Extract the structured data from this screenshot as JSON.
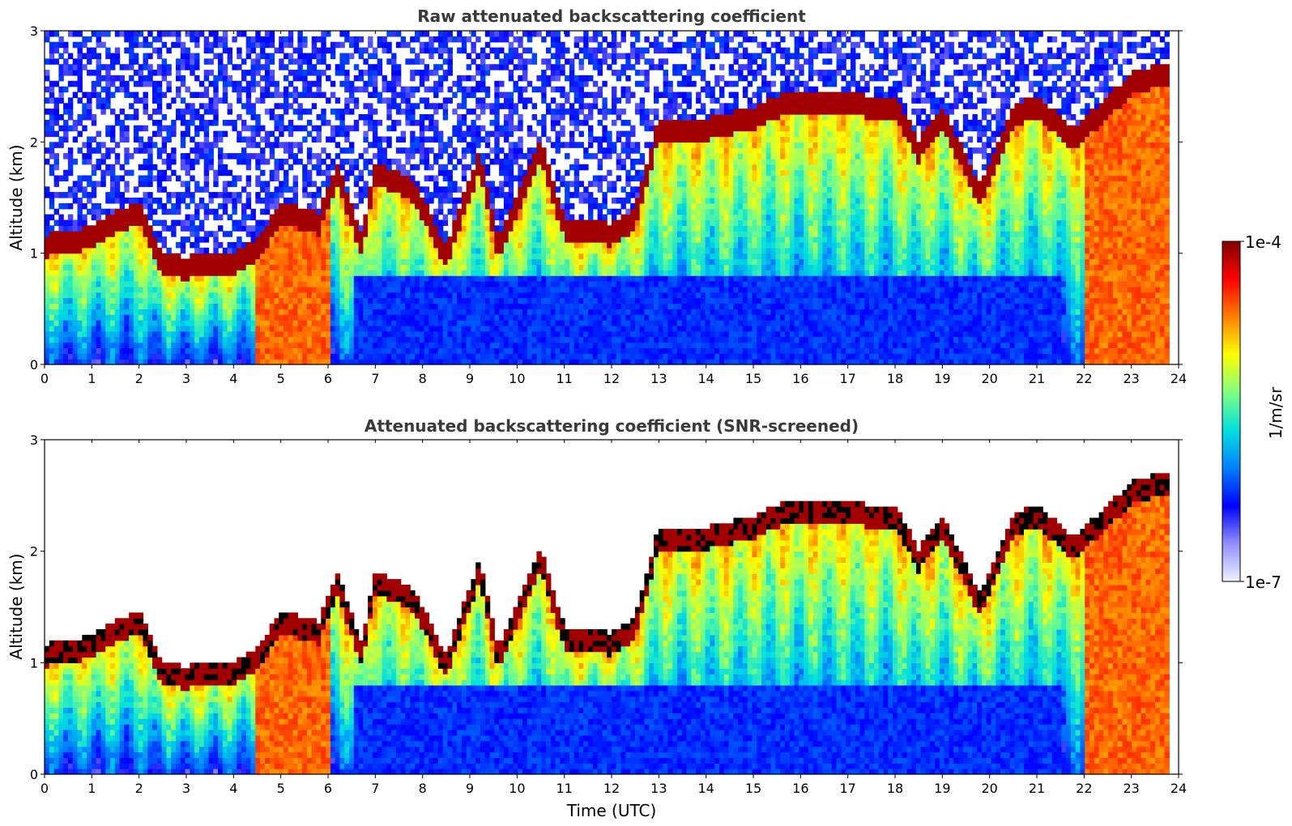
{
  "chart_data": [
    {
      "type": "heatmap",
      "title": "Raw attenuated backscattering coefficient",
      "xlabel": "",
      "ylabel": "Altitude (km)",
      "xlim": [
        0,
        24
      ],
      "ylim": [
        0,
        3
      ],
      "x_ticks": [
        "0",
        "1",
        "2",
        "3",
        "4",
        "5",
        "6",
        "7",
        "8",
        "9",
        "10",
        "11",
        "12",
        "13",
        "14",
        "15",
        "16",
        "17",
        "18",
        "19",
        "20",
        "21",
        "22",
        "23",
        "24"
      ],
      "y_ticks": [
        "0",
        "1",
        "2",
        "3"
      ],
      "screened": false,
      "cloud_base_km": [
        {
          "x": 0.0,
          "y": 1.05
        },
        {
          "x": 1.0,
          "y": 1.12
        },
        {
          "x": 1.5,
          "y": 1.25
        },
        {
          "x": 2.0,
          "y": 1.35
        },
        {
          "x": 2.5,
          "y": 0.88
        },
        {
          "x": 3.0,
          "y": 0.85
        },
        {
          "x": 4.0,
          "y": 0.9
        },
        {
          "x": 4.5,
          "y": 1.0
        },
        {
          "x": 5.0,
          "y": 1.35
        },
        {
          "x": 5.8,
          "y": 1.25
        },
        {
          "x": 6.2,
          "y": 1.7
        },
        {
          "x": 6.7,
          "y": 1.05
        },
        {
          "x": 7.0,
          "y": 1.7
        },
        {
          "x": 7.8,
          "y": 1.55
        },
        {
          "x": 8.5,
          "y": 0.95
        },
        {
          "x": 9.2,
          "y": 1.8
        },
        {
          "x": 9.6,
          "y": 1.0
        },
        {
          "x": 10.5,
          "y": 1.9
        },
        {
          "x": 11.0,
          "y": 1.2
        },
        {
          "x": 12.0,
          "y": 1.15
        },
        {
          "x": 12.5,
          "y": 1.3
        },
        {
          "x": 13.0,
          "y": 2.1
        },
        {
          "x": 14.0,
          "y": 2.1
        },
        {
          "x": 15.0,
          "y": 2.2
        },
        {
          "x": 15.5,
          "y": 2.3
        },
        {
          "x": 16.5,
          "y": 2.35
        },
        {
          "x": 17.5,
          "y": 2.3
        },
        {
          "x": 18.0,
          "y": 2.3
        },
        {
          "x": 18.5,
          "y": 1.9
        },
        {
          "x": 19.0,
          "y": 2.2
        },
        {
          "x": 19.8,
          "y": 1.5
        },
        {
          "x": 20.5,
          "y": 2.2
        },
        {
          "x": 21.0,
          "y": 2.3
        },
        {
          "x": 21.8,
          "y": 2.0
        },
        {
          "x": 22.5,
          "y": 2.3
        },
        {
          "x": 23.0,
          "y": 2.5
        },
        {
          "x": 23.8,
          "y": 2.6
        }
      ]
    },
    {
      "type": "heatmap",
      "title": "Attenuated backscattering coefficient (SNR-screened)",
      "xlabel": "Time (UTC)",
      "ylabel": "Altitude (km)",
      "xlim": [
        0,
        24
      ],
      "ylim": [
        0,
        3
      ],
      "x_ticks": [
        "0",
        "1",
        "2",
        "3",
        "4",
        "5",
        "6",
        "7",
        "8",
        "9",
        "10",
        "11",
        "12",
        "13",
        "14",
        "15",
        "16",
        "17",
        "18",
        "19",
        "20",
        "21",
        "22",
        "23",
        "24"
      ],
      "y_ticks": [
        "0",
        "1",
        "2",
        "3"
      ],
      "screened": true,
      "cloud_base_km": [
        {
          "x": 0.0,
          "y": 1.05
        },
        {
          "x": 1.0,
          "y": 1.12
        },
        {
          "x": 1.5,
          "y": 1.25
        },
        {
          "x": 2.0,
          "y": 1.35
        },
        {
          "x": 2.5,
          "y": 0.88
        },
        {
          "x": 3.0,
          "y": 0.85
        },
        {
          "x": 4.0,
          "y": 0.9
        },
        {
          "x": 4.5,
          "y": 1.0
        },
        {
          "x": 5.0,
          "y": 1.35
        },
        {
          "x": 5.8,
          "y": 1.25
        },
        {
          "x": 6.2,
          "y": 1.7
        },
        {
          "x": 6.7,
          "y": 1.05
        },
        {
          "x": 7.0,
          "y": 1.7
        },
        {
          "x": 7.8,
          "y": 1.55
        },
        {
          "x": 8.5,
          "y": 0.95
        },
        {
          "x": 9.2,
          "y": 1.8
        },
        {
          "x": 9.6,
          "y": 1.0
        },
        {
          "x": 10.5,
          "y": 1.9
        },
        {
          "x": 11.0,
          "y": 1.2
        },
        {
          "x": 12.0,
          "y": 1.15
        },
        {
          "x": 12.5,
          "y": 1.3
        },
        {
          "x": 13.0,
          "y": 2.1
        },
        {
          "x": 14.0,
          "y": 2.1
        },
        {
          "x": 15.0,
          "y": 2.2
        },
        {
          "x": 15.5,
          "y": 2.3
        },
        {
          "x": 16.5,
          "y": 2.35
        },
        {
          "x": 17.5,
          "y": 2.3
        },
        {
          "x": 18.0,
          "y": 2.3
        },
        {
          "x": 18.5,
          "y": 1.9
        },
        {
          "x": 19.0,
          "y": 2.2
        },
        {
          "x": 19.8,
          "y": 1.5
        },
        {
          "x": 20.5,
          "y": 2.2
        },
        {
          "x": 21.0,
          "y": 2.3
        },
        {
          "x": 21.8,
          "y": 2.0
        },
        {
          "x": 22.5,
          "y": 2.3
        },
        {
          "x": 23.0,
          "y": 2.5
        },
        {
          "x": 23.8,
          "y": 2.6
        }
      ]
    }
  ],
  "colorbar": {
    "label": "1/m/sr",
    "max_label": "1e-4",
    "min_label": "1e-7",
    "scale": "log",
    "colormap": [
      "#f0f0ff",
      "#9090ff",
      "#0000ff",
      "#0080ff",
      "#00e0e0",
      "#80ff80",
      "#ffff00",
      "#ff8000",
      "#ff0000",
      "#800000"
    ]
  }
}
